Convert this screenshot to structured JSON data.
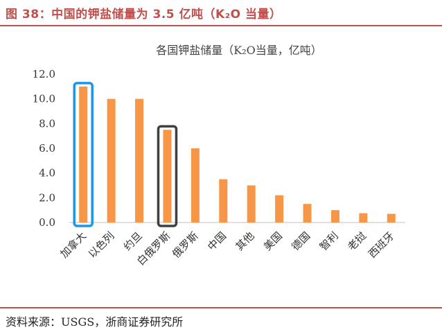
{
  "figure": {
    "title": "图 38：中国的钾盐储量为 3.5 亿吨（K₂O 当量）",
    "source": "资料来源：USGS，浙商证券研究所"
  },
  "chart_data": {
    "type": "bar",
    "title": "各国钾盐储量（K₂O当量，亿吨）",
    "xlabel": "",
    "ylabel": "",
    "categories": [
      "加拿大",
      "以色列",
      "约旦",
      "白俄罗斯",
      "俄罗斯",
      "中国",
      "其他",
      "美国",
      "德国",
      "智利",
      "老挝",
      "西班牙"
    ],
    "values": [
      11.0,
      10.0,
      10.0,
      7.5,
      6.0,
      3.5,
      3.0,
      2.2,
      1.5,
      1.0,
      0.75,
      0.7
    ],
    "ylim": [
      0,
      12
    ],
    "yticks": [
      "0.0",
      "2.0",
      "4.0",
      "6.0",
      "8.0",
      "10.0",
      "12.0"
    ],
    "grid": false,
    "bar_color": "#f79646",
    "highlights": [
      {
        "category": "加拿大",
        "color": "#1e96e6"
      },
      {
        "category": "白俄罗斯",
        "color": "#404040"
      }
    ]
  }
}
